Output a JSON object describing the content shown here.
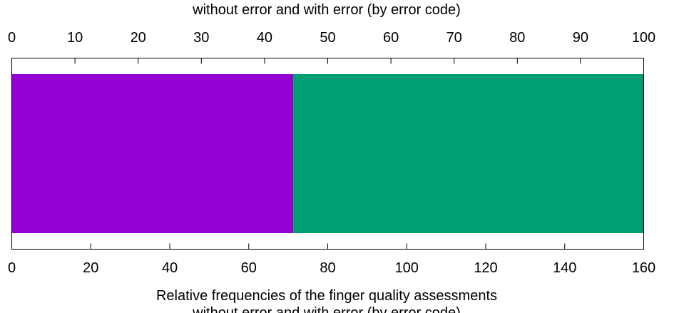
{
  "chart_data": {
    "type": "bar",
    "orientation": "horizontal",
    "stacked": true,
    "title": "",
    "top_axis_label": "without error and with error (by error code)",
    "xlabel_lines": [
      "Relative frequencies of the finger quality assessments",
      "without error and with error (by error code)"
    ],
    "top_axis": {
      "min": 0,
      "max": 100,
      "ticks": [
        0,
        10,
        20,
        30,
        40,
        50,
        60,
        70,
        80,
        90,
        100
      ]
    },
    "bottom_axis": {
      "min": 0,
      "max": 160,
      "ticks": [
        0,
        20,
        40,
        60,
        80,
        100,
        120,
        140,
        160
      ]
    },
    "grid": false,
    "legend": "none",
    "segments": [
      {
        "value": 71.3,
        "color": "#9400d3"
      },
      {
        "value": 88.7,
        "color": "#009e73"
      }
    ]
  }
}
